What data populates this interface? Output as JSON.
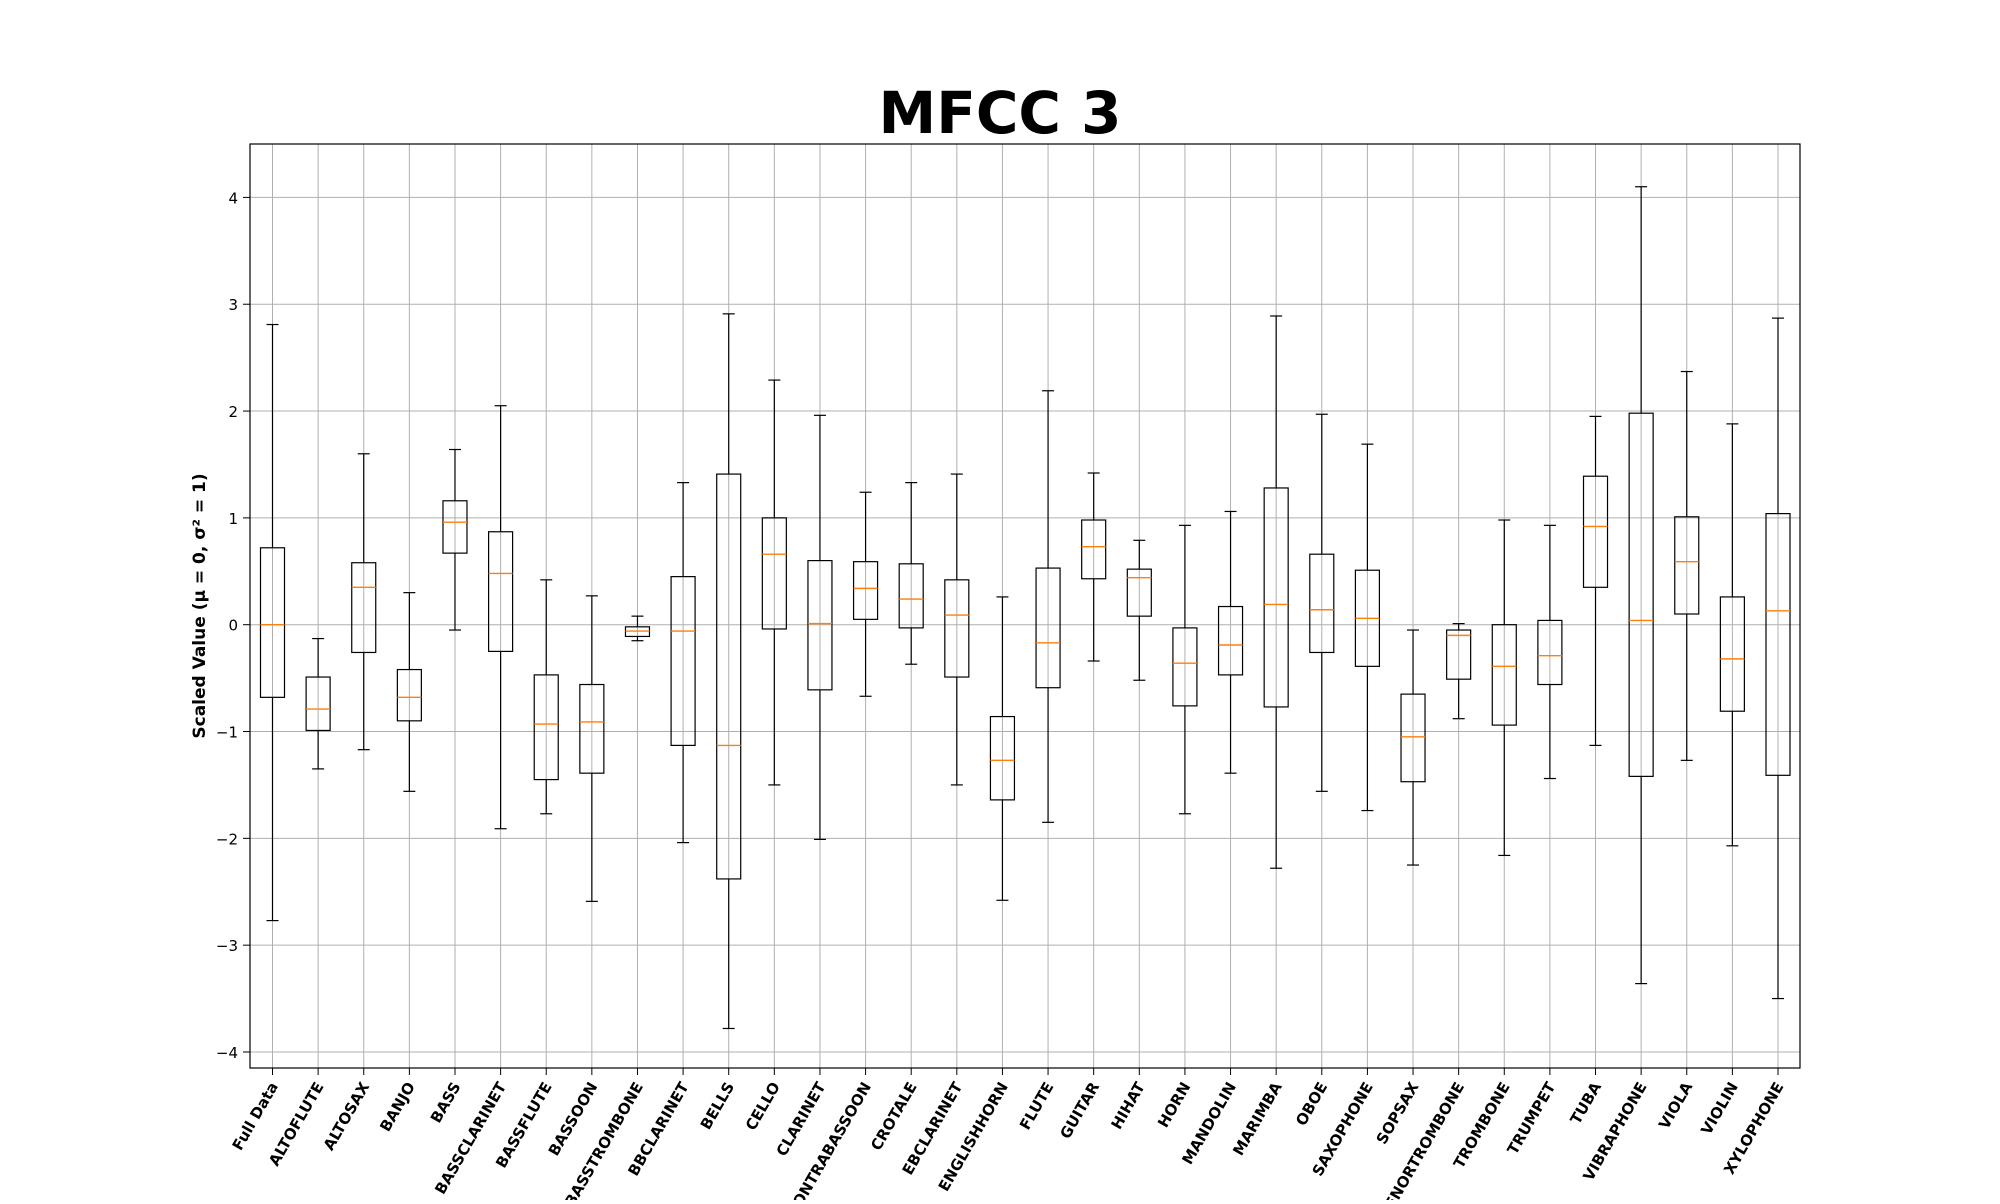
{
  "chart_data": {
    "type": "box",
    "title": "MFCC 3",
    "ylabel": "Scaled Value (μ = 0, σ² = 1)",
    "xlabel": "",
    "ylim": [
      -4.15,
      4.5
    ],
    "yticks": [
      -4,
      -3,
      -2,
      -1,
      0,
      1,
      2,
      3,
      4
    ],
    "grid": true,
    "colors": {
      "box": "#000000",
      "median": "#ff7f0e",
      "grid": "#b0b0b0"
    },
    "categories": [
      "Full Data",
      "ALTOFLUTE",
      "ALTOSAX",
      "BANJO",
      "BASS",
      "BASSCLARINET",
      "BASSFLUTE",
      "BASSOON",
      "BASSTROMBONE",
      "BBCLARINET",
      "BELLS",
      "CELLO",
      "CLARINET",
      "CONTRABASSOON",
      "CROTALE",
      "EBCLARINET",
      "ENGLISHHORN",
      "FLUTE",
      "GUITAR",
      "HIHAT",
      "HORN",
      "MANDOLIN",
      "MARIMBA",
      "OBOE",
      "SAXOPHONE",
      "SOPSAX",
      "TENORTROMBONE",
      "TROMBONE",
      "TRUMPET",
      "TUBA",
      "VIBRAPHONE",
      "VIOLA",
      "VIOLIN",
      "XYLOPHONE"
    ],
    "boxes": [
      {
        "whislo": -2.77,
        "q1": -0.68,
        "med": 0.0,
        "q3": 0.72,
        "whishi": 2.81
      },
      {
        "whislo": -1.35,
        "q1": -0.99,
        "med": -0.79,
        "q3": -0.49,
        "whishi": -0.13
      },
      {
        "whislo": -1.17,
        "q1": -0.26,
        "med": 0.35,
        "q3": 0.58,
        "whishi": 1.6
      },
      {
        "whislo": -1.56,
        "q1": -0.9,
        "med": -0.68,
        "q3": -0.42,
        "whishi": 0.3
      },
      {
        "whislo": -0.05,
        "q1": 0.67,
        "med": 0.96,
        "q3": 1.16,
        "whishi": 1.64
      },
      {
        "whislo": -1.91,
        "q1": -0.25,
        "med": 0.48,
        "q3": 0.87,
        "whishi": 2.05
      },
      {
        "whislo": -1.77,
        "q1": -1.45,
        "med": -0.93,
        "q3": -0.47,
        "whishi": 0.42
      },
      {
        "whislo": -2.59,
        "q1": -1.39,
        "med": -0.91,
        "q3": -0.56,
        "whishi": 0.27
      },
      {
        "whislo": -0.15,
        "q1": -0.11,
        "med": -0.06,
        "q3": -0.02,
        "whishi": 0.08
      },
      {
        "whislo": -2.04,
        "q1": -1.13,
        "med": -0.06,
        "q3": 0.45,
        "whishi": 1.33
      },
      {
        "whislo": -3.78,
        "q1": -2.38,
        "med": -1.13,
        "q3": 1.41,
        "whishi": 2.91
      },
      {
        "whislo": -1.5,
        "q1": -0.04,
        "med": 0.66,
        "q3": 1.0,
        "whishi": 2.29
      },
      {
        "whislo": -2.01,
        "q1": -0.61,
        "med": 0.01,
        "q3": 0.6,
        "whishi": 1.96
      },
      {
        "whislo": -0.67,
        "q1": 0.05,
        "med": 0.34,
        "q3": 0.59,
        "whishi": 1.24
      },
      {
        "whislo": -0.37,
        "q1": -0.03,
        "med": 0.24,
        "q3": 0.57,
        "whishi": 1.33
      },
      {
        "whislo": -1.5,
        "q1": -0.49,
        "med": 0.09,
        "q3": 0.42,
        "whishi": 1.41
      },
      {
        "whislo": -2.58,
        "q1": -1.64,
        "med": -1.27,
        "q3": -0.86,
        "whishi": 0.26
      },
      {
        "whislo": -1.85,
        "q1": -0.59,
        "med": -0.17,
        "q3": 0.53,
        "whishi": 2.19
      },
      {
        "whislo": -0.34,
        "q1": 0.43,
        "med": 0.73,
        "q3": 0.98,
        "whishi": 1.42
      },
      {
        "whislo": -0.52,
        "q1": 0.08,
        "med": 0.44,
        "q3": 0.52,
        "whishi": 0.79
      },
      {
        "whislo": -1.77,
        "q1": -0.76,
        "med": -0.36,
        "q3": -0.03,
        "whishi": 0.93
      },
      {
        "whislo": -1.39,
        "q1": -0.47,
        "med": -0.19,
        "q3": 0.17,
        "whishi": 1.06
      },
      {
        "whislo": -2.28,
        "q1": -0.77,
        "med": 0.19,
        "q3": 1.28,
        "whishi": 2.89
      },
      {
        "whislo": -1.56,
        "q1": -0.26,
        "med": 0.14,
        "q3": 0.66,
        "whishi": 1.97
      },
      {
        "whislo": -1.74,
        "q1": -0.39,
        "med": 0.06,
        "q3": 0.51,
        "whishi": 1.69
      },
      {
        "whislo": -2.25,
        "q1": -1.47,
        "med": -1.05,
        "q3": -0.65,
        "whishi": -0.05
      },
      {
        "whislo": -0.88,
        "q1": -0.51,
        "med": -0.1,
        "q3": -0.05,
        "whishi": 0.01
      },
      {
        "whislo": -2.16,
        "q1": -0.94,
        "med": -0.39,
        "q3": 0.0,
        "whishi": 0.98
      },
      {
        "whislo": -1.44,
        "q1": -0.56,
        "med": -0.29,
        "q3": 0.04,
        "whishi": 0.93
      },
      {
        "whislo": -1.13,
        "q1": 0.35,
        "med": 0.92,
        "q3": 1.39,
        "whishi": 1.95
      },
      {
        "whislo": -3.36,
        "q1": -1.42,
        "med": 0.04,
        "q3": 1.98,
        "whishi": 4.1
      },
      {
        "whislo": -1.27,
        "q1": 0.1,
        "med": 0.59,
        "q3": 1.01,
        "whishi": 2.37
      },
      {
        "whislo": -2.07,
        "q1": -0.81,
        "med": -0.32,
        "q3": 0.26,
        "whishi": 1.88
      },
      {
        "whislo": -3.5,
        "q1": -1.41,
        "med": 0.13,
        "q3": 1.04,
        "whishi": 2.87
      }
    ]
  }
}
